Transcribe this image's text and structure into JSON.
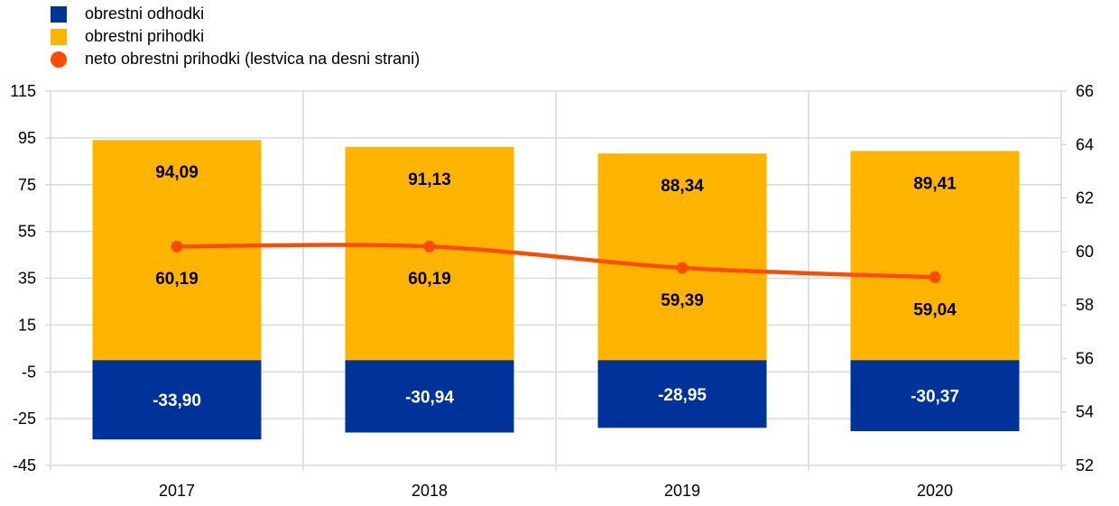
{
  "colors": {
    "expenses": "#003399",
    "income": "#FFB400",
    "net": "#FF4B00",
    "grid": "#D9D9D9"
  },
  "chart_data": {
    "type": "bar",
    "stacked": true,
    "categories": [
      "2017",
      "2018",
      "2019",
      "2020"
    ],
    "series": [
      {
        "name": "obrestni odhodki",
        "type": "bar",
        "axis": "left",
        "values": [
          -33.9,
          -30.94,
          -28.95,
          -30.37
        ],
        "labels": [
          "-33,90",
          "-30,94",
          "-28,95",
          "-30,37"
        ]
      },
      {
        "name": "obrestni prihodki",
        "type": "bar",
        "axis": "left",
        "values": [
          94.09,
          91.13,
          88.34,
          89.41
        ],
        "labels": [
          "94,09",
          "91,13",
          "88,34",
          "89,41"
        ]
      },
      {
        "name": "neto obrestni prihodki (lestvica na desni strani)",
        "type": "line",
        "axis": "right",
        "values": [
          60.19,
          60.19,
          59.39,
          59.04
        ],
        "labels": [
          "60,19",
          "60,19",
          "59,39",
          "59,04"
        ]
      }
    ],
    "left_axis": {
      "min": -45,
      "max": 115,
      "ticks": [
        "115",
        "95",
        "75",
        "55",
        "35",
        "15",
        "-5",
        "-25",
        "-45"
      ]
    },
    "right_axis": {
      "min": 52,
      "max": 66,
      "ticks": [
        "66",
        "64",
        "62",
        "60",
        "58",
        "56",
        "54",
        "52"
      ]
    },
    "grid": true,
    "legend_position": "top-left"
  }
}
